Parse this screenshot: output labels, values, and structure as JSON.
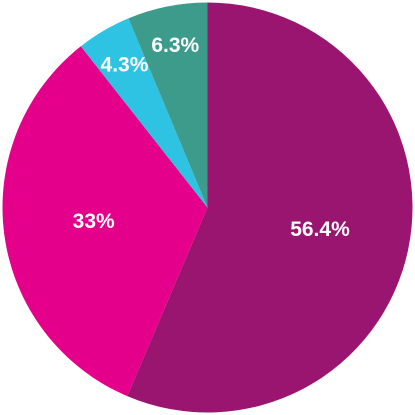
{
  "chart_data": {
    "type": "pie",
    "values": [
      56.4,
      33,
      4.3,
      6.3
    ],
    "value_labels": [
      "56.4%",
      "33%",
      "4.3%",
      "6.3%"
    ],
    "colors": [
      "#9a1570",
      "#e4008a",
      "#2ec3e2",
      "#3d9b8b"
    ]
  }
}
